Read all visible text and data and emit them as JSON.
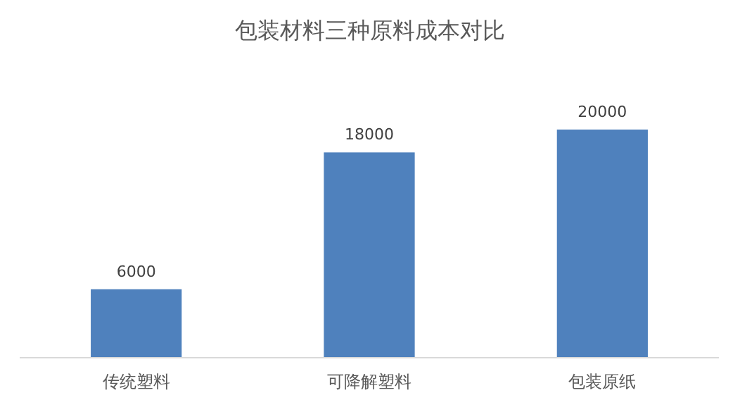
{
  "chart_data": {
    "type": "bar",
    "title": "包装材料三种原料成本对比",
    "categories": [
      "传统塑料",
      "可降解塑料",
      "包装原纸"
    ],
    "values": [
      6000,
      18000,
      20000
    ],
    "color": "#4f81bd",
    "data_labels": true
  }
}
